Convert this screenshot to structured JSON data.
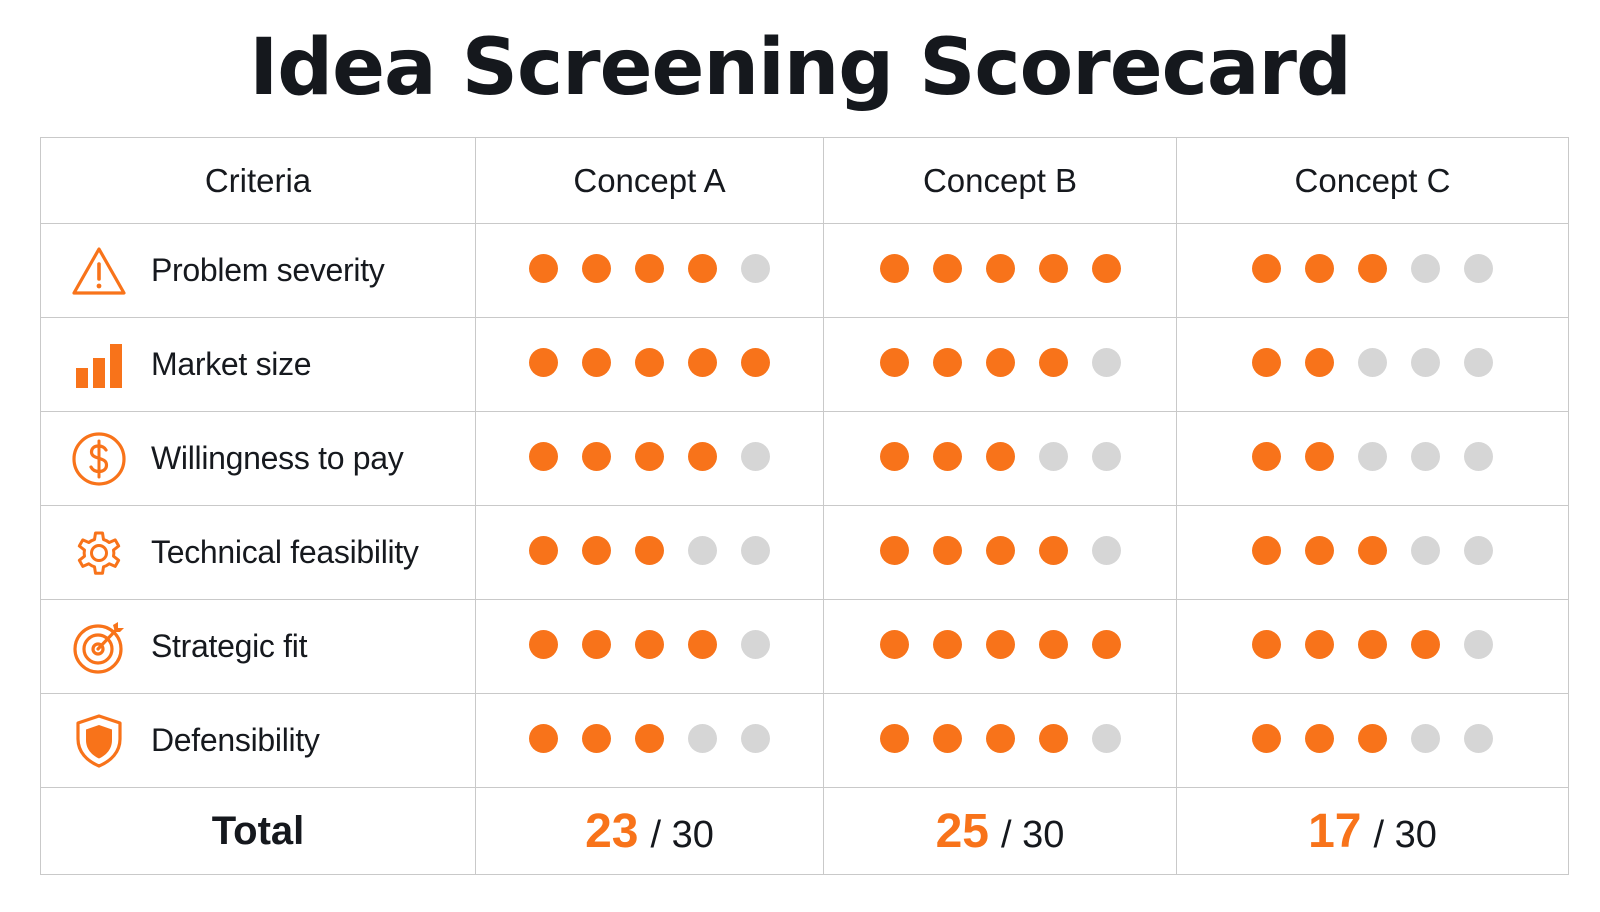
{
  "title": "Idea Screening Scorecard",
  "accent_color": "#f8731a",
  "inactive_color": "#d6d6d6",
  "header": {
    "criteria_label": "Criteria",
    "concepts": [
      "Concept A",
      "Concept B",
      "Concept C"
    ]
  },
  "criteria": [
    {
      "label": "Problem severity",
      "icon": "warning-icon",
      "scores": [
        4,
        5,
        3
      ]
    },
    {
      "label": "Market size",
      "icon": "bar-chart-icon",
      "scores": [
        5,
        4,
        2
      ]
    },
    {
      "label": "Willingness to pay",
      "icon": "dollar-icon",
      "scores": [
        4,
        3,
        2
      ]
    },
    {
      "label": "Technical feasibility",
      "icon": "gear-icon",
      "scores": [
        3,
        4,
        3
      ]
    },
    {
      "label": "Strategic fit",
      "icon": "target-icon",
      "scores": [
        4,
        5,
        4
      ]
    },
    {
      "label": "Defensibility",
      "icon": "shield-icon",
      "scores": [
        3,
        4,
        3
      ]
    }
  ],
  "max_score_per_criterion": 5,
  "total": {
    "label": "Total",
    "scores": [
      "23",
      "25",
      "17"
    ],
    "max_label": "/ 30"
  }
}
